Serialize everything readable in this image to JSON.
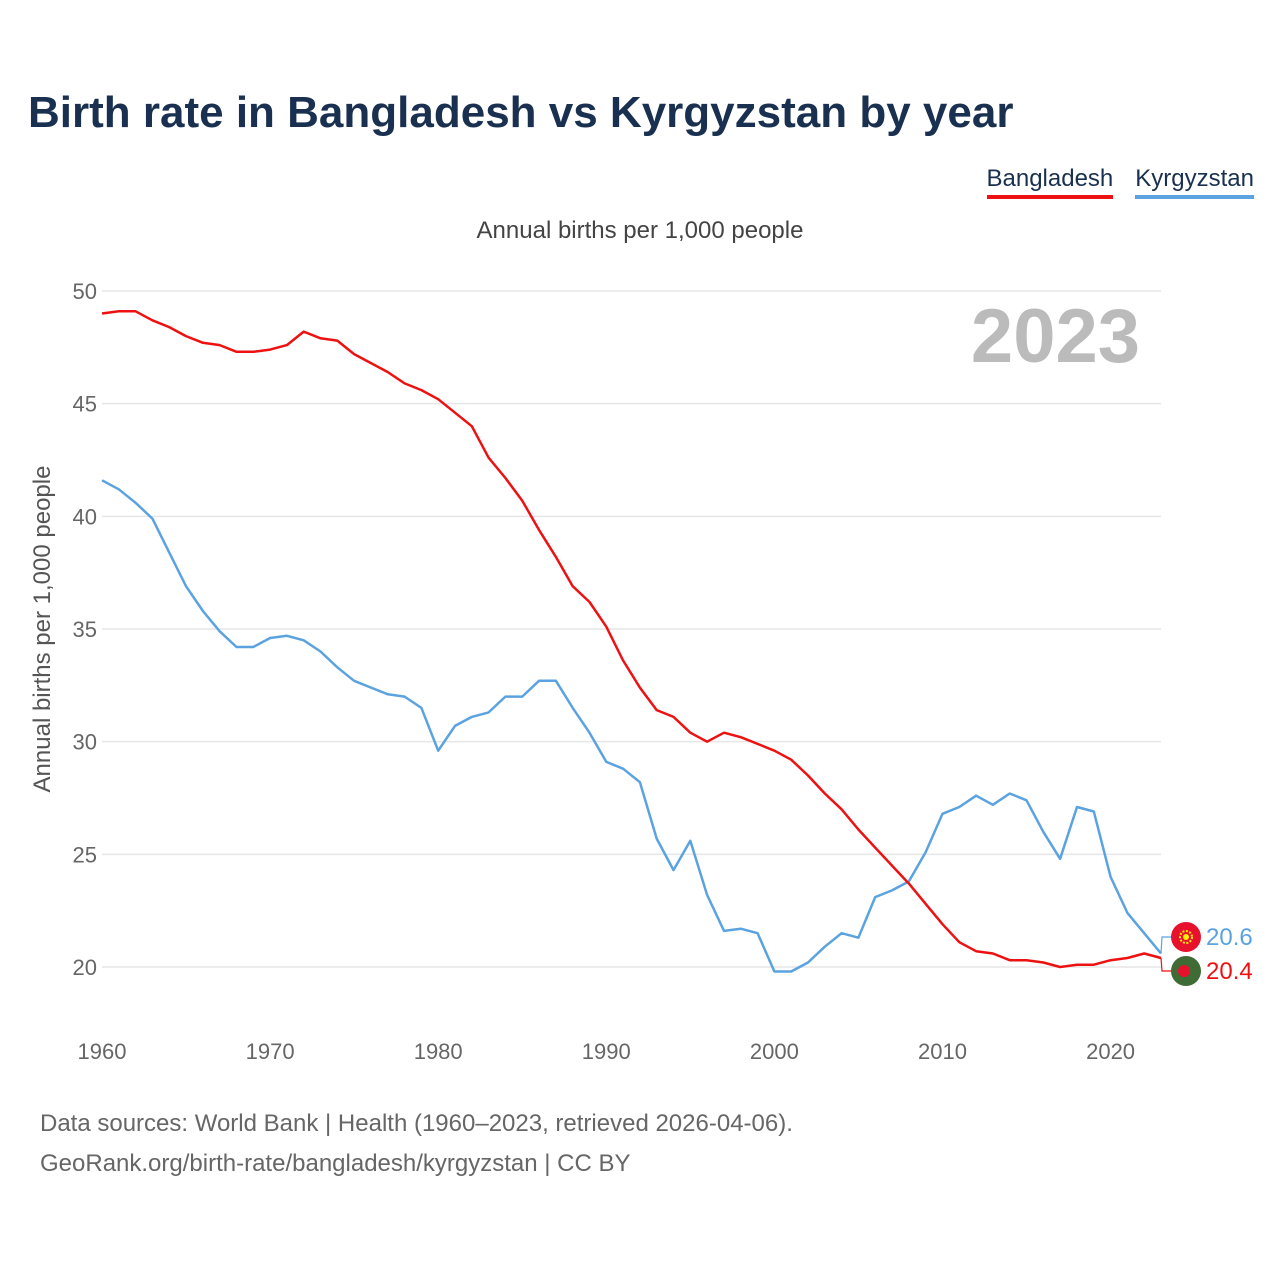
{
  "title": "Birth rate in Bangladesh vs Kyrgyzstan by year",
  "subtitle": "Annual births per 1,000 people",
  "legend": [
    {
      "label": "Bangladesh",
      "color": "#ee1111"
    },
    {
      "label": "Kyrgyzstan",
      "color": "#5ba3e0"
    }
  ],
  "year_label": "2023",
  "footer": {
    "line1": "Data sources: World Bank | Health (1960–2023, retrieved 2026-04-06).",
    "line2": "GeoRank.org/birth-rate/bangladesh/kyrgyzstan | CC BY"
  },
  "chart_data": {
    "type": "line",
    "title": "Birth rate in Bangladesh vs Kyrgyzstan by year",
    "subtitle": "Annual births per 1,000 people",
    "xlabel": "",
    "ylabel": "Annual births per 1,000 people",
    "xlim": [
      1960,
      2023
    ],
    "ylim": [
      20,
      50
    ],
    "xticks": [
      1960,
      1970,
      1980,
      1990,
      2000,
      2010,
      2020
    ],
    "yticks": [
      20,
      25,
      30,
      35,
      40,
      45,
      50
    ],
    "grid": true,
    "legend_position": "top-right",
    "x": [
      1960,
      1961,
      1962,
      1963,
      1964,
      1965,
      1966,
      1967,
      1968,
      1969,
      1970,
      1971,
      1972,
      1973,
      1974,
      1975,
      1976,
      1977,
      1978,
      1979,
      1980,
      1981,
      1982,
      1983,
      1984,
      1985,
      1986,
      1987,
      1988,
      1989,
      1990,
      1991,
      1992,
      1993,
      1994,
      1995,
      1996,
      1997,
      1998,
      1999,
      2000,
      2001,
      2002,
      2003,
      2004,
      2005,
      2006,
      2007,
      2008,
      2009,
      2010,
      2011,
      2012,
      2013,
      2014,
      2015,
      2016,
      2017,
      2018,
      2019,
      2020,
      2021,
      2022,
      2023
    ],
    "series": [
      {
        "name": "Bangladesh",
        "color": "#ee1111",
        "end_label": "20.4",
        "values": [
          49.0,
          49.1,
          49.1,
          48.7,
          48.4,
          48.0,
          47.7,
          47.6,
          47.3,
          47.3,
          47.4,
          47.6,
          48.2,
          47.9,
          47.8,
          47.2,
          46.8,
          46.4,
          45.9,
          45.6,
          45.2,
          44.6,
          44.0,
          42.6,
          41.7,
          40.7,
          39.4,
          38.2,
          36.9,
          36.2,
          35.1,
          33.6,
          32.4,
          31.4,
          31.1,
          30.4,
          30.0,
          30.4,
          30.2,
          29.9,
          29.6,
          29.2,
          28.5,
          27.7,
          27.0,
          26.1,
          25.3,
          24.5,
          23.7,
          22.8,
          21.9,
          21.1,
          20.7,
          20.6,
          20.3,
          20.3,
          20.2,
          20.0,
          20.1,
          20.1,
          20.3,
          20.4,
          20.6,
          20.4
        ]
      },
      {
        "name": "Kyrgyzstan",
        "color": "#5ba3e0",
        "end_label": "20.6",
        "values": [
          41.6,
          41.2,
          40.6,
          39.9,
          38.4,
          36.9,
          35.8,
          34.9,
          34.2,
          34.2,
          34.6,
          34.7,
          34.5,
          34.0,
          33.3,
          32.7,
          32.4,
          32.1,
          32.0,
          31.5,
          29.6,
          30.7,
          31.1,
          31.3,
          32.0,
          32.0,
          32.7,
          32.7,
          31.5,
          30.4,
          29.1,
          28.8,
          28.2,
          25.7,
          24.3,
          25.6,
          23.2,
          21.6,
          21.7,
          21.5,
          19.8,
          19.8,
          20.2,
          20.9,
          21.5,
          21.3,
          23.1,
          23.4,
          23.8,
          25.1,
          26.8,
          27.1,
          27.6,
          27.2,
          27.7,
          27.4,
          26.0,
          24.8,
          27.1,
          26.9,
          24.0,
          22.4,
          21.5,
          20.6
        ]
      }
    ]
  }
}
